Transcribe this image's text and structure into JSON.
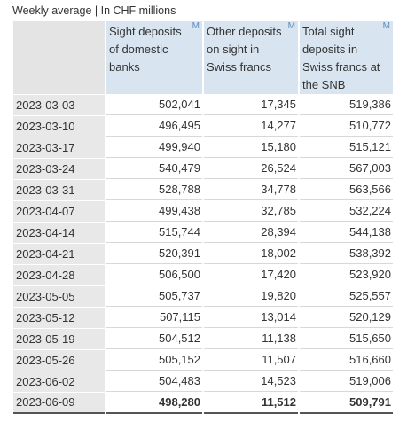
{
  "subtitle": "Weekly average | In CHF millions",
  "marker": "M",
  "columns": [
    "Sight deposits of domestic banks",
    "Other deposits on sight in Swiss francs",
    "Total sight deposits in Swiss francs at the SNB"
  ],
  "rows": [
    {
      "date": "2023-03-03",
      "v1": "502,041",
      "v2": "17,345",
      "v3": "519,386"
    },
    {
      "date": "2023-03-10",
      "v1": "496,495",
      "v2": "14,277",
      "v3": "510,772"
    },
    {
      "date": "2023-03-17",
      "v1": "499,940",
      "v2": "15,180",
      "v3": "515,121"
    },
    {
      "date": "2023-03-24",
      "v1": "540,479",
      "v2": "26,524",
      "v3": "567,003"
    },
    {
      "date": "2023-03-31",
      "v1": "528,788",
      "v2": "34,778",
      "v3": "563,566"
    },
    {
      "date": "2023-04-07",
      "v1": "499,438",
      "v2": "32,785",
      "v3": "532,224"
    },
    {
      "date": "2023-04-14",
      "v1": "515,744",
      "v2": "28,394",
      "v3": "544,138"
    },
    {
      "date": "2023-04-21",
      "v1": "520,391",
      "v2": "18,002",
      "v3": "538,392"
    },
    {
      "date": "2023-04-28",
      "v1": "506,500",
      "v2": "17,420",
      "v3": "523,920"
    },
    {
      "date": "2023-05-05",
      "v1": "505,737",
      "v2": "19,820",
      "v3": "525,557"
    },
    {
      "date": "2023-05-12",
      "v1": "507,115",
      "v2": "13,014",
      "v3": "520,129"
    },
    {
      "date": "2023-05-19",
      "v1": "504,512",
      "v2": "11,138",
      "v3": "515,650"
    },
    {
      "date": "2023-05-26",
      "v1": "505,152",
      "v2": "11,507",
      "v3": "516,660"
    },
    {
      "date": "2023-06-02",
      "v1": "504,483",
      "v2": "14,523",
      "v3": "519,006"
    },
    {
      "date": "2023-06-09",
      "v1": "498,280",
      "v2": "11,512",
      "v3": "509,791"
    }
  ],
  "colors": {
    "header_bg": "#d8e4ef",
    "date_bg": "#e8e8e8",
    "marker": "#5b8cbe"
  }
}
